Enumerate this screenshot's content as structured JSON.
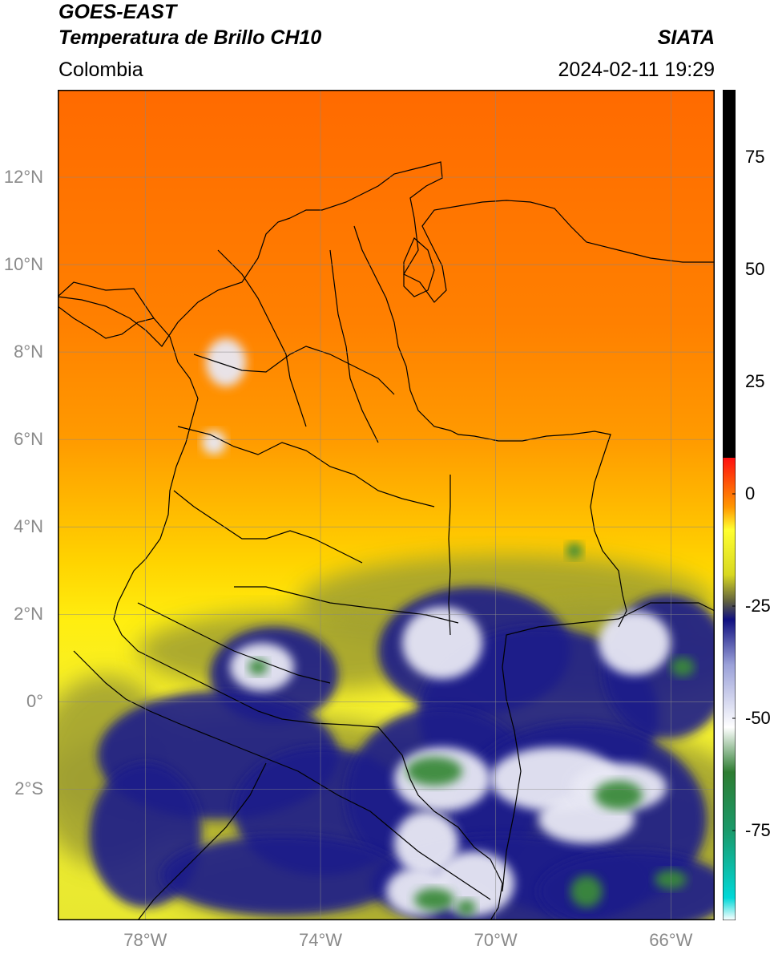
{
  "header": {
    "satellite": "GOES-EAST",
    "product": "Temperatura de Brillo CH10",
    "source": "SIATA",
    "region": "Colombia",
    "datetime": "2024-02-11 19:29"
  },
  "map": {
    "lat_range": [
      -5,
      14
    ],
    "lon_range": [
      -80,
      -65
    ],
    "lat_ticks": [
      {
        "value": 12,
        "label": "12°N"
      },
      {
        "value": 10,
        "label": "10°N"
      },
      {
        "value": 8,
        "label": "8°N"
      },
      {
        "value": 6,
        "label": "6°N"
      },
      {
        "value": 4,
        "label": "4°N"
      },
      {
        "value": 2,
        "label": "2°N"
      },
      {
        "value": 0,
        "label": "0°"
      },
      {
        "value": -2,
        "label": "2°S"
      }
    ],
    "lon_ticks": [
      {
        "value": -78,
        "label": "78°W"
      },
      {
        "value": -74,
        "label": "74°W"
      },
      {
        "value": -70,
        "label": "70°W"
      },
      {
        "value": -66,
        "label": "66°W"
      }
    ],
    "grid": true
  },
  "colorbar": {
    "range": [
      -95,
      90
    ],
    "ticks": [
      {
        "value": 75,
        "label": "75"
      },
      {
        "value": 50,
        "label": "50"
      },
      {
        "value": 25,
        "label": "25"
      },
      {
        "value": 0,
        "label": "0"
      },
      {
        "value": -25,
        "label": "-25"
      },
      {
        "value": -50,
        "label": "-50"
      },
      {
        "value": -75,
        "label": "-75"
      }
    ],
    "stops": [
      {
        "value": -95,
        "color": "#ffffff"
      },
      {
        "value": -90,
        "color": "#00d8d8"
      },
      {
        "value": -75,
        "color": "#1a9a6a"
      },
      {
        "value": -62,
        "color": "#2e7d32"
      },
      {
        "value": -52,
        "color": "#ffffff"
      },
      {
        "value": -38,
        "color": "#9aa0d8"
      },
      {
        "value": -28,
        "color": "#101080"
      },
      {
        "value": -24,
        "color": "#606040"
      },
      {
        "value": -18,
        "color": "#d8d820"
      },
      {
        "value": -8,
        "color": "#ffff30"
      },
      {
        "value": -3,
        "color": "#ff9800"
      },
      {
        "value": 8,
        "color": "#ff1010"
      },
      {
        "value": 8.01,
        "color": "#000000"
      },
      {
        "value": 90,
        "color": "#000000"
      }
    ]
  }
}
